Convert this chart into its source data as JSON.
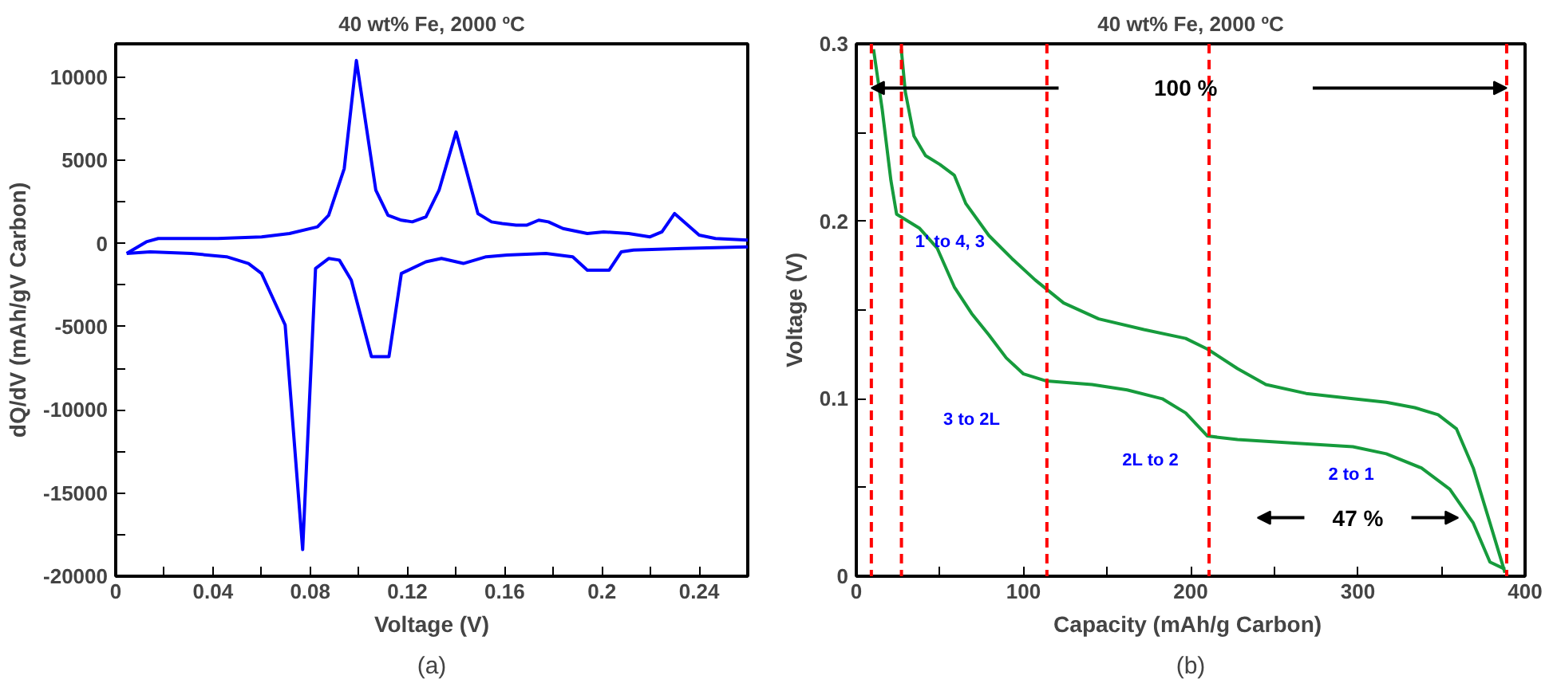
{
  "chart_data": [
    {
      "type": "line",
      "title": "40 wt% Fe, 2000 ºC",
      "xlabel": "Voltage (V)",
      "ylabel": "dQ/dV (mAh/gV Carbon)",
      "xlim": [
        0,
        0.26
      ],
      "ylim": [
        -20000,
        12000
      ],
      "xticks": [
        0,
        {
          "value": 0.02,
          "label": null
        },
        0.04,
        {
          "value": 0.06,
          "label": null
        },
        0.08,
        {
          "value": 0.1,
          "label": null
        },
        0.12,
        {
          "value": 0.14,
          "label": null
        },
        0.16,
        {
          "value": 0.18,
          "label": null
        },
        0.2,
        {
          "value": 0.22,
          "label": null
        },
        0.24
      ],
      "yticks": [
        -20000,
        {
          "value": -17500,
          "label": null
        },
        -15000,
        {
          "value": -12500,
          "label": null
        },
        -10000,
        {
          "value": -7500,
          "label": null
        },
        -5000,
        {
          "value": -2500,
          "label": null
        },
        0,
        {
          "value": 2500,
          "label": null
        },
        5000,
        {
          "value": 7500,
          "label": null
        },
        10000
      ],
      "grid": false,
      "annotations": [
        "(a)"
      ],
      "series": [
        {
          "color": "#0000ff",
          "x": [
            0.0045,
            0.0126,
            0.0175,
            0.042,
            0.06,
            0.0715,
            0.083,
            0.0876,
            0.094,
            0.099,
            0.107,
            0.112,
            0.1175,
            0.122,
            0.1276,
            0.133,
            0.14,
            0.149,
            0.1546,
            0.159,
            0.1647,
            0.169,
            0.174,
            0.178,
            0.184,
            0.194,
            0.2007,
            0.211,
            0.2198,
            0.2247,
            0.2299,
            0.24,
            0.2467,
            0.26
          ],
          "values": [
            -600,
            100,
            300,
            300,
            400,
            600,
            1000,
            1700,
            4500,
            11000,
            3200,
            1700,
            1400,
            1300,
            1600,
            3200,
            6700,
            1800,
            1300,
            1200,
            1100,
            1100,
            1400,
            1300,
            900,
            600,
            700,
            600,
            400,
            700,
            1800,
            500,
            300,
            200
          ]
        },
        {
          "color": "#0000ff",
          "x": [
            0.0045,
            0.0142,
            0.031,
            0.0456,
            0.0546,
            0.06,
            0.0697,
            0.0769,
            0.0822,
            0.0876,
            0.092,
            0.0969,
            0.1052,
            0.1124,
            0.1175,
            0.1276,
            0.134,
            0.143,
            0.1524,
            0.161,
            0.177,
            0.188,
            0.194,
            0.203,
            0.208,
            0.213,
            0.2333,
            0.26
          ],
          "values": [
            -600,
            -500,
            -600,
            -800,
            -1200,
            -1800,
            -4900,
            -18400,
            -1500,
            -900,
            -1000,
            -2200,
            -6800,
            -6800,
            -1800,
            -1100,
            -900,
            -1200,
            -800,
            -700,
            -600,
            -800,
            -1600,
            -1600,
            -500,
            -400,
            -300,
            -200
          ]
        }
      ]
    },
    {
      "type": "line",
      "title": "40 wt% Fe, 2000 ºC",
      "xlabel": "Capacity (mAh/g  Carbon)",
      "ylabel": "Voltage (V)",
      "xlim": [
        0,
        400
      ],
      "ylim": [
        0,
        0.3
      ],
      "xticks": [
        0,
        {
          "value": 50,
          "label": null
        },
        100,
        {
          "value": 150,
          "label": null
        },
        200,
        {
          "value": 250,
          "label": null
        },
        300,
        {
          "value": 350,
          "label": null
        },
        400
      ],
      "yticks": [
        0,
        {
          "value": 0.05,
          "label": null
        },
        0.1,
        {
          "value": 0.15,
          "label": null
        },
        0.2,
        {
          "value": 0.25,
          "label": null
        },
        0.3
      ],
      "grid": false,
      "ref_lines": [
        {
          "axis": "x",
          "value": 9,
          "color": "#ff0000",
          "line_style": "dashed"
        },
        {
          "axis": "x",
          "value": 27,
          "color": "#ff0000",
          "line_style": "dashed"
        },
        {
          "axis": "x",
          "value": 114,
          "color": "#ff0000",
          "line_style": "dashed"
        },
        {
          "axis": "x",
          "value": 211,
          "color": "#ff0000",
          "line_style": "dashed"
        },
        {
          "axis": "x",
          "value": 389,
          "color": "#ff0000",
          "line_style": "dashed"
        }
      ],
      "annotations": [
        "1' to 4, 3",
        "3 to 2L",
        "2L to 2",
        "2 to 1",
        "100 %",
        "47 %",
        "(b)"
      ],
      "series": [
        {
          "color": "#169b3c",
          "x": [
            26.9,
            29.3,
            34.5,
            41.4,
            50,
            58.6,
            65.5,
            79.3,
            93.1,
            106.9,
            124,
            145,
            172,
            197,
            210,
            228,
            245,
            269,
            297,
            317,
            334,
            348,
            359,
            369,
            379,
            388
          ],
          "values": [
            0.297,
            0.273,
            0.248,
            0.237,
            0.232,
            0.226,
            0.21,
            0.192,
            0.179,
            0.167,
            0.154,
            0.145,
            0.139,
            0.134,
            0.128,
            0.117,
            0.108,
            0.103,
            0.1,
            0.098,
            0.095,
            0.091,
            0.083,
            0.061,
            0.03,
            0.002
          ]
        },
        {
          "color": "#169b3c",
          "x": [
            10.3,
            15.5,
            20.7,
            24.1,
            37.9,
            48.3,
            58.6,
            69,
            79.3,
            89.7,
            100,
            113.8,
            141,
            162,
            183,
            197,
            210,
            228,
            262,
            297,
            317,
            338,
            355,
            369,
            379,
            388
          ],
          "values": [
            0.297,
            0.263,
            0.223,
            0.204,
            0.196,
            0.185,
            0.163,
            0.148,
            0.136,
            0.123,
            0.114,
            0.11,
            0.108,
            0.105,
            0.1,
            0.092,
            0.079,
            0.077,
            0.075,
            0.073,
            0.069,
            0.061,
            0.049,
            0.03,
            0.008,
            0.004
          ]
        }
      ]
    }
  ]
}
